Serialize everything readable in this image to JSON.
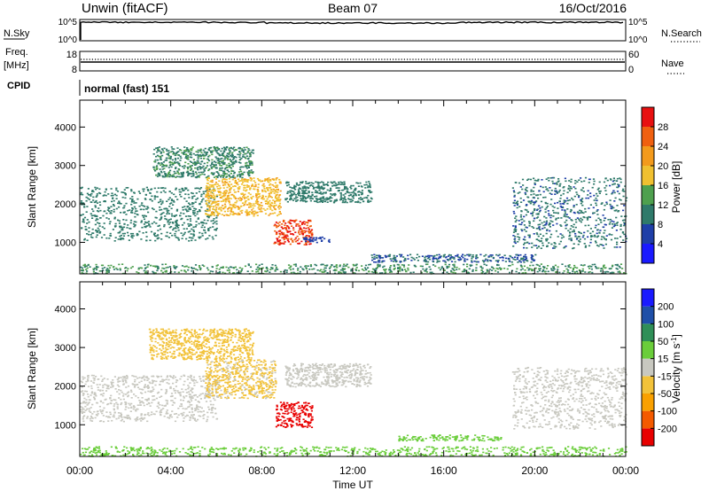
{
  "header": {
    "station": "Unwin (fitACF)",
    "beam": "Beam 07",
    "date": "16/Oct/2016"
  },
  "top_panels": {
    "nsky": {
      "label": "N.Sky",
      "ticks_left": [
        "10^5",
        "10^0"
      ],
      "ticks_right": [
        "10^5",
        "10^0"
      ],
      "right_label": "N.Search"
    },
    "freq": {
      "label_line1": "Freq.",
      "label_line2": "[MHz]",
      "ticks_left": [
        "18",
        "8"
      ],
      "ticks_right": [
        "60",
        "0"
      ],
      "right_label": "Nave"
    },
    "cpid": {
      "label": "CPID",
      "value": "normal (fast) 151"
    }
  },
  "colors": {
    "power": [
      "#1a1aff",
      "#1f3fa8",
      "#2f7a6a",
      "#4ea04e",
      "#f0c030",
      "#f39a1c",
      "#f06010",
      "#e81010"
    ],
    "velocity": [
      "#e80000",
      "#f45a00",
      "#f9a000",
      "#f2c23a",
      "#c8c8c0",
      "#6acd3a",
      "#2f8f57",
      "#1f4fa8",
      "#1a1aff"
    ]
  },
  "chart_data": [
    {
      "type": "heatmap",
      "name": "power",
      "xlabel": "",
      "ylabel": "Slant Range [km]",
      "x_ticks": [
        "00:00",
        "04:00",
        "08:00",
        "12:00",
        "16:00",
        "20:00",
        "00:00"
      ],
      "y_ticks": [
        1000,
        2000,
        3000,
        4000
      ],
      "ylim": [
        180,
        4700
      ],
      "xlim_hours": [
        0,
        24
      ],
      "colorbar": {
        "label": "Power [dB]",
        "ticks": [
          4,
          8,
          12,
          16,
          20,
          24,
          28
        ],
        "range": [
          0,
          32
        ]
      },
      "scatter_regions": [
        {
          "x": [
            0.0,
            6.0
          ],
          "y": [
            1050,
            2450
          ],
          "value": 10
        },
        {
          "x": [
            3.2,
            7.6
          ],
          "y": [
            2700,
            3500
          ],
          "value": 11
        },
        {
          "x": [
            5.5,
            8.8
          ],
          "y": [
            1700,
            2700
          ],
          "value": 19
        },
        {
          "x": [
            8.5,
            10.2
          ],
          "y": [
            950,
            1600
          ],
          "value": 28
        },
        {
          "x": [
            9.8,
            11.0
          ],
          "y": [
            1000,
            1150
          ],
          "value": 6
        },
        {
          "x": [
            9.0,
            12.8
          ],
          "y": [
            2050,
            2600
          ],
          "value": 10
        },
        {
          "x": [
            12.8,
            20.0
          ],
          "y": [
            500,
            700
          ],
          "value": 8
        },
        {
          "x": [
            19.0,
            24.0
          ],
          "y": [
            850,
            2700
          ],
          "value": 9
        },
        {
          "x": [
            0.0,
            24.0
          ],
          "y": [
            200,
            450
          ],
          "value": 12
        }
      ]
    },
    {
      "type": "heatmap",
      "name": "velocity",
      "xlabel": "Time UT",
      "ylabel": "Slant Range [km]",
      "x_ticks": [
        "00:00",
        "04:00",
        "08:00",
        "12:00",
        "16:00",
        "20:00",
        "00:00"
      ],
      "y_ticks": [
        1000,
        2000,
        3000,
        4000
      ],
      "ylim": [
        180,
        4700
      ],
      "xlim_hours": [
        0,
        24
      ],
      "colorbar": {
        "label": "Velocity [m s^-1]",
        "ticks": [
          200,
          100,
          50,
          15,
          -15,
          -50,
          -100,
          -200
        ],
        "range": [
          -250,
          250
        ]
      },
      "scatter_regions": [
        {
          "x": [
            0.0,
            6.0
          ],
          "y": [
            1100,
            2300
          ],
          "value": 0
        },
        {
          "x": [
            3.0,
            7.6
          ],
          "y": [
            2700,
            3500
          ],
          "value": -40
        },
        {
          "x": [
            5.5,
            8.6
          ],
          "y": [
            1700,
            2700
          ],
          "value": -20
        },
        {
          "x": [
            8.6,
            10.2
          ],
          "y": [
            950,
            1600
          ],
          "value": -230
        },
        {
          "x": [
            9.0,
            12.8
          ],
          "y": [
            2000,
            2600
          ],
          "value": 0
        },
        {
          "x": [
            14.0,
            18.5
          ],
          "y": [
            600,
            750
          ],
          "value": 40
        },
        {
          "x": [
            19.0,
            24.0
          ],
          "y": [
            900,
            2500
          ],
          "value": 0
        },
        {
          "x": [
            0.0,
            24.0
          ],
          "y": [
            200,
            450
          ],
          "value": 30
        }
      ]
    }
  ]
}
